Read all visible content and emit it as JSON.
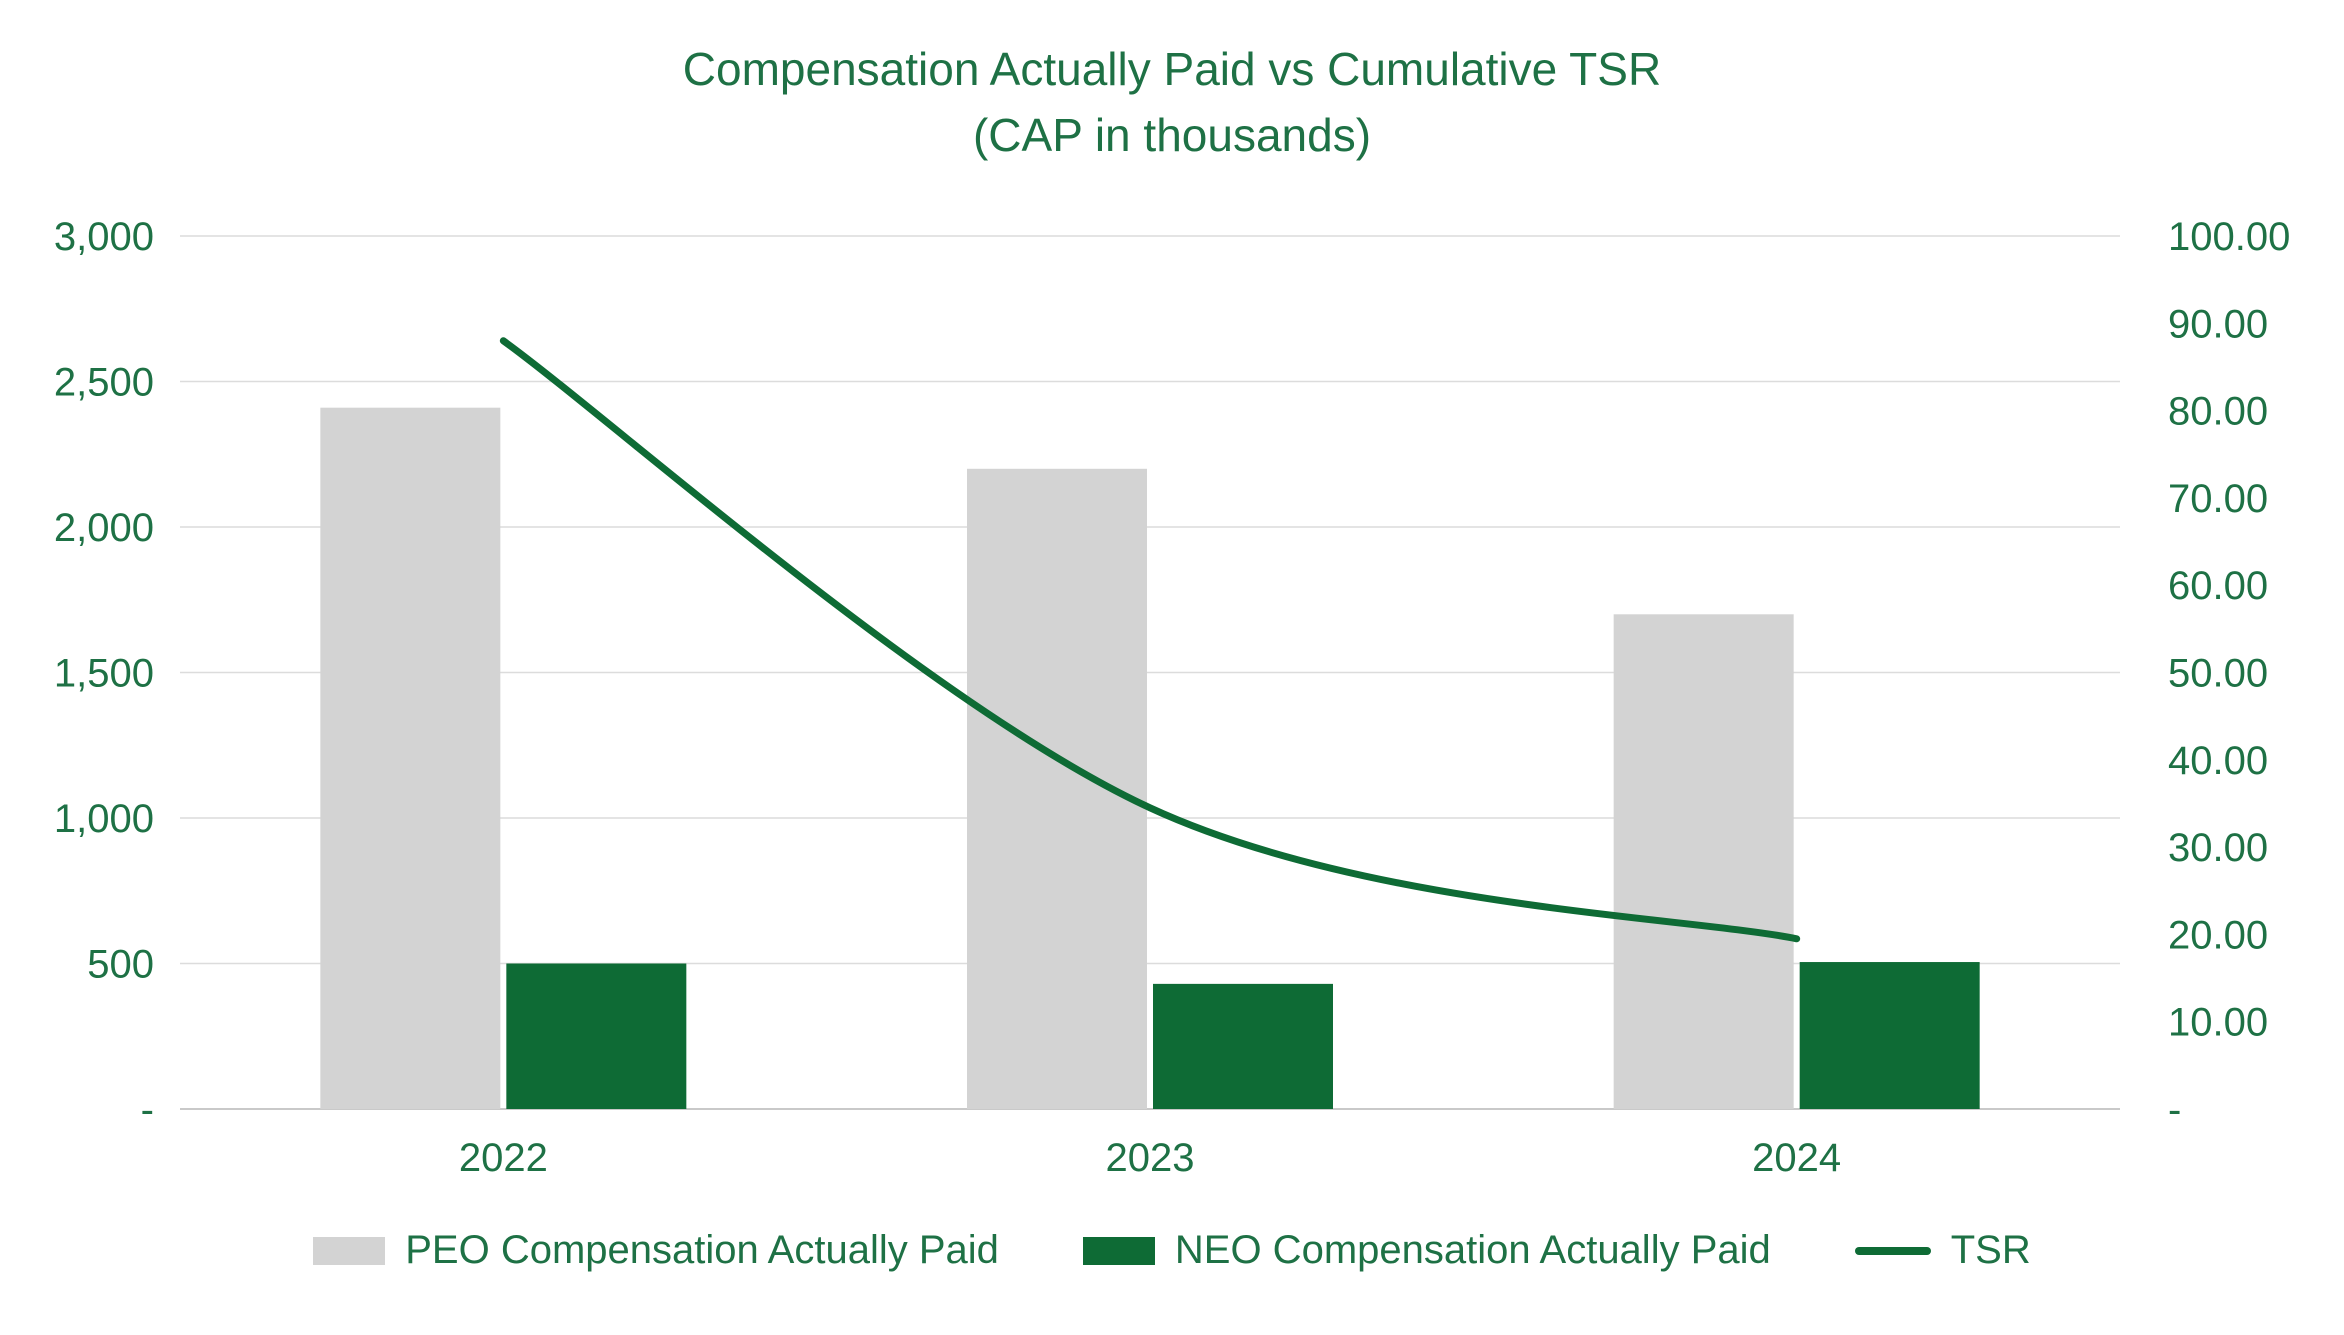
{
  "title": {
    "line1": "Compensation Actually Paid vs Cumulative TSR",
    "line2": "(CAP in thousands)"
  },
  "colors": {
    "title_text": "#1E7145",
    "axis_text": "#1E7145",
    "legend_text": "#1E7145",
    "peo_bar": "#D3D3D3",
    "neo_bar": "#0E6B35",
    "tsr_line": "#0E6B35",
    "gridline": "#DCDCDC",
    "axis_line": "#C9C9C9",
    "background": "#FFFFFF"
  },
  "chart_data": {
    "type": "bar+line",
    "title": "Compensation Actually Paid vs Cumulative TSR (CAP in thousands)",
    "categories": [
      "2022",
      "2023",
      "2024"
    ],
    "series": [
      {
        "name": "PEO Compensation Actually Paid",
        "type": "bar",
        "axis": "left",
        "values": [
          2410,
          2200,
          1700
        ]
      },
      {
        "name": "NEO Compensation Actually Paid",
        "type": "bar",
        "axis": "left",
        "values": [
          500,
          430,
          505
        ]
      },
      {
        "name": "TSR",
        "type": "line",
        "axis": "right",
        "values": [
          88.0,
          34.5,
          19.5
        ]
      }
    ],
    "left_axis": {
      "min": 0,
      "max": 3000,
      "step": 500,
      "tick_labels": [
        "-",
        "500",
        "1,000",
        "1,500",
        "2,000",
        "2,500",
        "3,000"
      ]
    },
    "right_axis": {
      "min": 0,
      "max": 100,
      "step": 10,
      "tick_labels": [
        "-",
        "10.00",
        "20.00",
        "30.00",
        "40.00",
        "50.00",
        "60.00",
        "70.00",
        "80.00",
        "90.00",
        "100.00"
      ]
    },
    "grid": true,
    "legend_position": "bottom"
  }
}
